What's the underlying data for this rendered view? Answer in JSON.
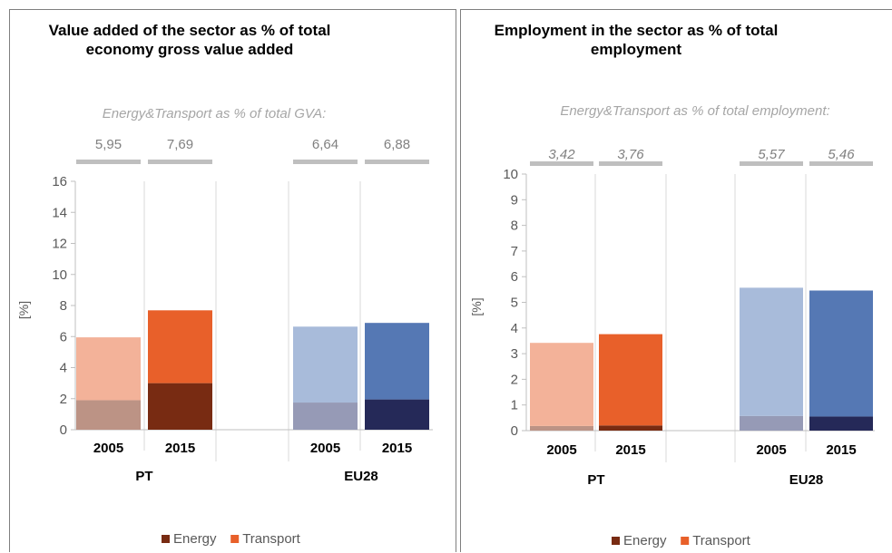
{
  "chart_data": [
    {
      "type": "bar",
      "stacked": true,
      "title": "Value added of the sector as % of total economy gross value added",
      "annotation_label": "Energy&Transport as % of total GVA:",
      "annotation_values": [
        "5,95",
        "7,69",
        "6,64",
        "6,88"
      ],
      "categories": [
        "2005",
        "2015",
        "2005",
        "2015"
      ],
      "groups": [
        {
          "name": "PT",
          "span": [
            0,
            1
          ]
        },
        {
          "name": "EU28",
          "span": [
            2,
            3
          ]
        }
      ],
      "ylabel": "[%]",
      "ylim": [
        0,
        16
      ],
      "yticks": [
        0,
        2,
        4,
        6,
        8,
        10,
        12,
        14,
        16
      ],
      "grid": "vertical-separators",
      "legend_position": "bottom",
      "series": [
        {
          "name": "Energy",
          "values": [
            1.9,
            3.0,
            1.75,
            1.95
          ],
          "colors": [
            "#bc9385",
            "#782b12",
            "#969ab6",
            "#252958"
          ]
        },
        {
          "name": "Transport",
          "values": [
            4.05,
            4.69,
            4.89,
            4.93
          ],
          "colors": [
            "#f3b299",
            "#e8602a",
            "#a8bbda",
            "#5578b4"
          ]
        }
      ],
      "legend_colors": [
        "#782b12",
        "#e8602a"
      ]
    },
    {
      "type": "bar",
      "stacked": true,
      "title": "Employment in the sector as % of total employment",
      "annotation_label": "Energy&Transport as % of total employment:",
      "annotation_values": [
        "3,42",
        "3,76",
        "5,57",
        "5,46"
      ],
      "categories": [
        "2005",
        "2015",
        "2005",
        "2015"
      ],
      "groups": [
        {
          "name": "PT",
          "span": [
            0,
            1
          ]
        },
        {
          "name": "EU28",
          "span": [
            2,
            3
          ]
        }
      ],
      "ylabel": "[%]",
      "ylim": [
        0,
        10
      ],
      "yticks": [
        0,
        1,
        2,
        3,
        4,
        5,
        6,
        7,
        8,
        9,
        10
      ],
      "grid": "vertical-separators",
      "legend_position": "bottom",
      "series": [
        {
          "name": "Energy",
          "values": [
            0.18,
            0.2,
            0.57,
            0.55
          ],
          "colors": [
            "#bc9385",
            "#782b12",
            "#969ab6",
            "#252958"
          ]
        },
        {
          "name": "Transport",
          "values": [
            3.24,
            3.56,
            5.0,
            4.91
          ],
          "colors": [
            "#f3b299",
            "#e8602a",
            "#a8bbda",
            "#5578b4"
          ]
        }
      ],
      "legend_colors": [
        "#782b12",
        "#e8602a"
      ]
    }
  ]
}
